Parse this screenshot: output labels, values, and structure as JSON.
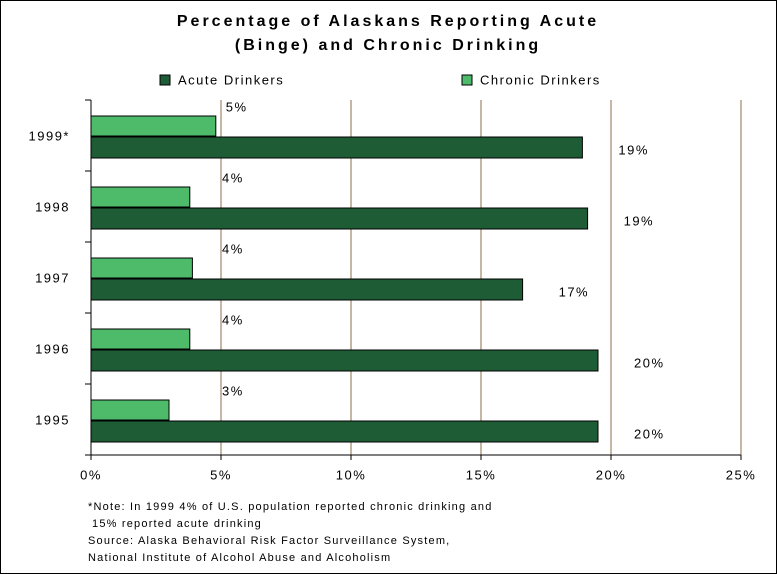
{
  "chart_data": {
    "type": "hbar",
    "title_lines": [
      "Percentage of Alaskans Reporting Acute",
      "(Binge) and Chronic Drinking"
    ],
    "categories": [
      "1999*",
      "1998",
      "1997",
      "1996",
      "1995"
    ],
    "series": [
      {
        "name": "Acute Drinkers",
        "color": "#1e5c36",
        "values": [
          18.9,
          19.1,
          16.6,
          19.5,
          19.5
        ],
        "value_labels": [
          "19%",
          "19%",
          "17%",
          "20%",
          "20%"
        ]
      },
      {
        "name": "Chronic Drinkers",
        "color": "#4dbb6a",
        "values": [
          4.8,
          3.8,
          3.9,
          3.8,
          3.0
        ],
        "value_labels": [
          "5%",
          "4%",
          "4%",
          "4%",
          "3%"
        ]
      }
    ],
    "xlim": [
      0,
      25
    ],
    "xticks": [
      {
        "value": 0,
        "label": "0%"
      },
      {
        "value": 5,
        "label": "5%"
      },
      {
        "value": 10,
        "label": "10%"
      },
      {
        "value": 15,
        "label": "15%"
      },
      {
        "value": 20,
        "label": "20%"
      },
      {
        "value": 25,
        "label": "25%"
      }
    ],
    "grid": true,
    "grid_color": "#8b6f47",
    "notes": [
      "*Note: In 1999  4%  of U.S. population reported chronic drinking and",
      "15%  reported acute drinking",
      "Source:  Alaska Behavioral Risk Factor Surveillance System,",
      "National Institute of Alcohol Abuse and Alcoholism"
    ]
  }
}
